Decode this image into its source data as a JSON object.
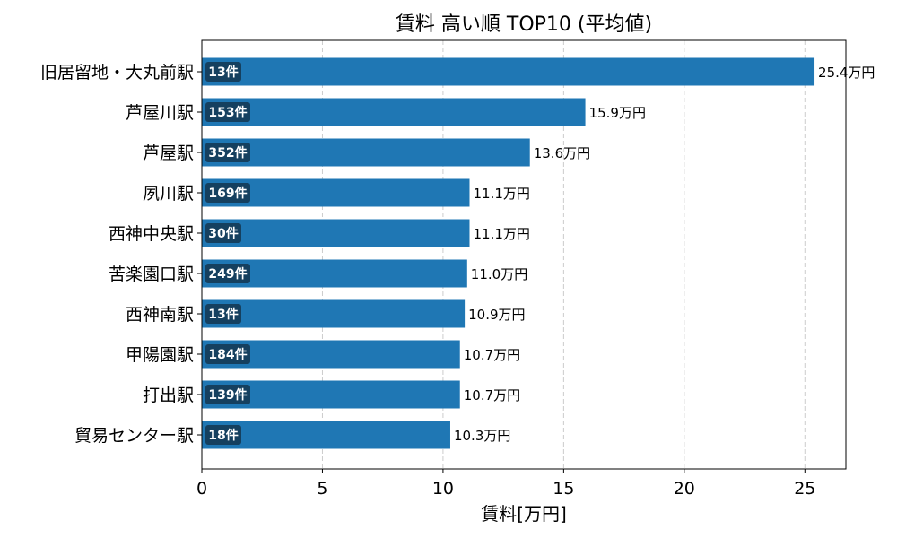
{
  "chart_data": {
    "type": "bar",
    "orientation": "horizontal",
    "title": "賃料 高い順 TOP10 (平均値)",
    "xlabel": "賃料[万円]",
    "ylabel": "",
    "xlim": [
      0,
      26.7
    ],
    "xticks": [
      "0",
      "5",
      "10",
      "15",
      "20",
      "25"
    ],
    "grid": "x, dashed",
    "bar_color": "#1f77b4",
    "badge_color": "#15405f",
    "categories": [
      "旧居留地・大丸前駅",
      "芦屋川駅",
      "芦屋駅",
      "夙川駅",
      "西神中央駅",
      "苦楽園口駅",
      "西神南駅",
      "甲陽園駅",
      "打出駅",
      "貿易センター駅"
    ],
    "values": [
      25.4,
      15.9,
      13.6,
      11.1,
      11.1,
      11.0,
      10.9,
      10.7,
      10.7,
      10.3
    ],
    "value_labels": [
      "25.4万円",
      "15.9万円",
      "13.6万円",
      "11.1万円",
      "11.1万円",
      "11.0万円",
      "10.9万円",
      "10.7万円",
      "10.7万円",
      "10.3万円"
    ],
    "counts": [
      "13件",
      "153件",
      "352件",
      "169件",
      "30件",
      "249件",
      "13件",
      "184件",
      "139件",
      "18件"
    ]
  }
}
